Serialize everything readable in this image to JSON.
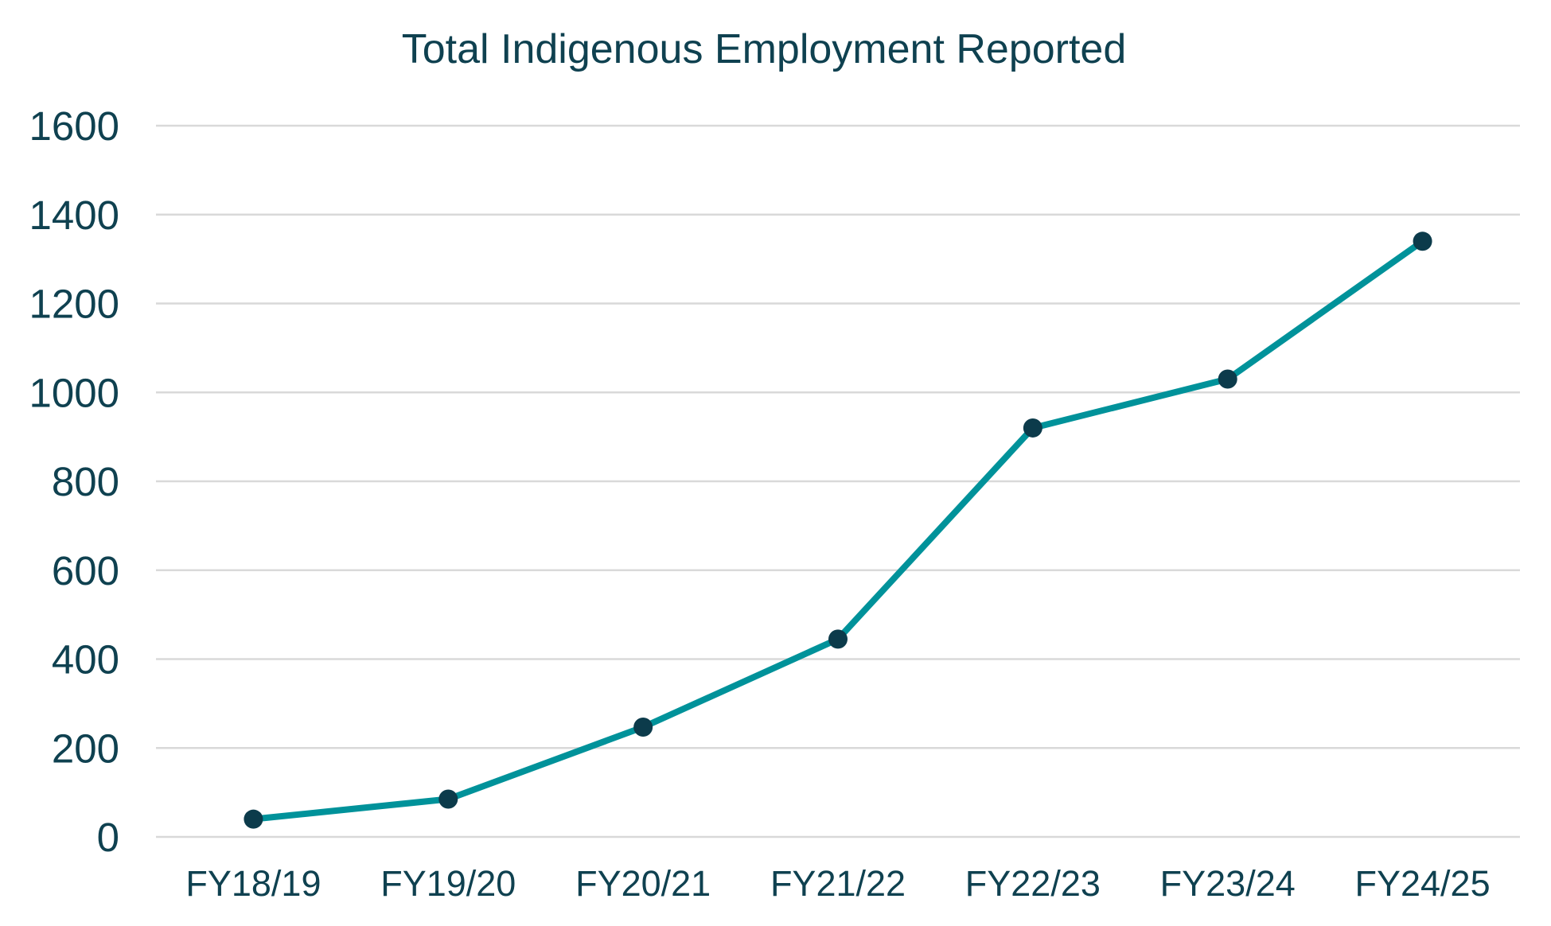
{
  "chart_data": {
    "type": "line",
    "title": "Total Indigenous Employment Reported",
    "xlabel": "",
    "ylabel": "",
    "categories": [
      "FY18/19",
      "FY19/20",
      "FY20/21",
      "FY21/22",
      "FY22/23",
      "FY23/24",
      "FY24/25"
    ],
    "series": [
      {
        "values": [
          40,
          85,
          247,
          445,
          920,
          1030,
          1340
        ]
      }
    ],
    "ylim": [
      0,
      1600
    ],
    "yticks": [
      0,
      200,
      400,
      600,
      800,
      1000,
      1200,
      1400,
      1600
    ],
    "grid": true,
    "legend": "none",
    "colors": {
      "line": "#00929a",
      "marker": "#0c3b4b",
      "text": "#0f4150",
      "grid": "#d9d9d9"
    }
  }
}
